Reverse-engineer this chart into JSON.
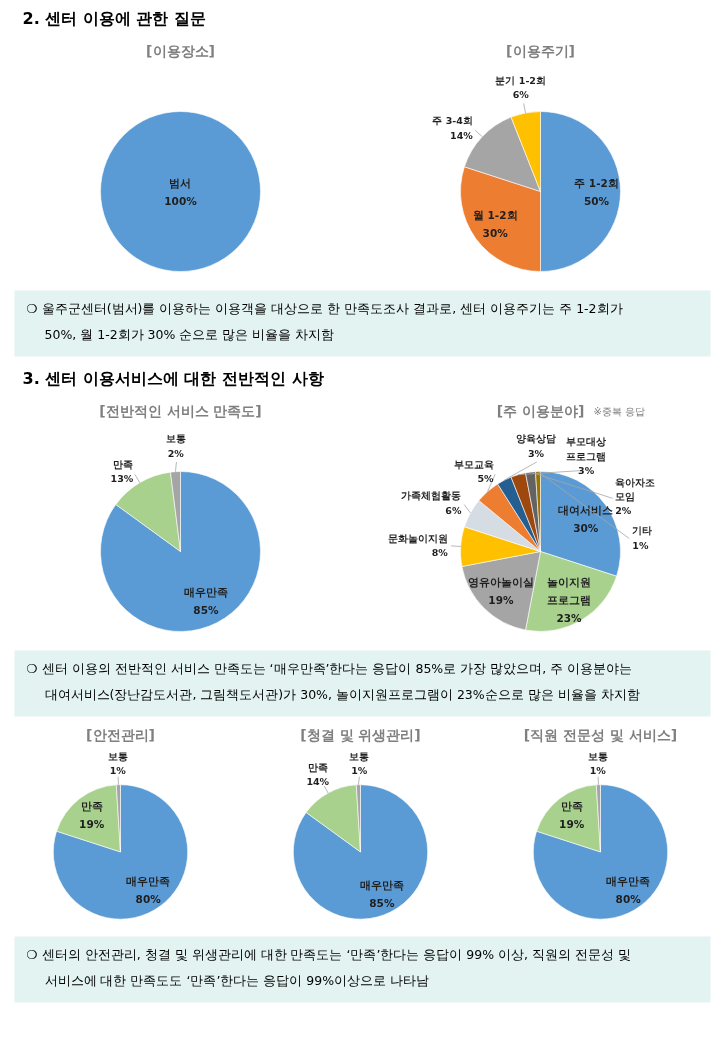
{
  "chart_data": [
    {
      "type": "other",
      "title": "2. 센터 이용에 관한 질문"
    },
    {
      "type": "pie",
      "title": "[이용장소]",
      "categories": [
        "범서"
      ],
      "values": [
        100
      ],
      "value_labels": [
        "100%"
      ],
      "colors": [
        "#5b9bd5"
      ]
    },
    {
      "type": "pie",
      "title": "[이용주기]",
      "categories": [
        "주 1-2회",
        "월 1-2회",
        "주 3-4회",
        "분기 1-2회"
      ],
      "values": [
        50,
        30,
        14,
        6
      ],
      "value_labels": [
        "50%",
        "30%",
        "14%",
        "6%"
      ],
      "colors": [
        "#5b9bd5",
        "#ed7d31",
        "#a5a5a5",
        "#ffc000"
      ]
    },
    {
      "type": "other",
      "annotations": [
        "❍ 울주군센터(범서)를 이용하는 이용객을 대상으로 한 만족도조사 결과로, 센터 이용주기는 주 1-2회가\n50%, 월 1-2회가 30% 순으로 많은 비율을 차지함"
      ]
    },
    {
      "type": "other",
      "title": "3. 센터 이용서비스에 대한 전반적인 사항"
    },
    {
      "type": "pie",
      "title": "[전반적인 서비스 만족도]",
      "categories": [
        "매우만족",
        "만족",
        "보통"
      ],
      "values": [
        85,
        13,
        2
      ],
      "value_labels": [
        "85%",
        "13%",
        "2%"
      ],
      "colors": [
        "#5b9bd5",
        "#a9d18e",
        "#a5a5a5"
      ]
    },
    {
      "type": "pie",
      "title": "[주 이용분야]",
      "subtitle": "※중복 응답",
      "categories": [
        "대여서비스",
        "놀이지원\n프로그램",
        "영유아놀이실",
        "문화놀이지원",
        "가족체험활동",
        "부모교육",
        "양육상담",
        "부모대상\n프로그램",
        "육아자조\n모임",
        "기타"
      ],
      "values": [
        30,
        23,
        19,
        8,
        6,
        5,
        3,
        3,
        2,
        1
      ],
      "value_labels": [
        "30%",
        "23%",
        "19%",
        "8%",
        "6%",
        "5%",
        "3%",
        "3%",
        "2%",
        "1%"
      ],
      "colors": [
        "#5b9bd5",
        "#a9d18e",
        "#a5a5a5",
        "#ffc000",
        "#d6dce4",
        "#ed7d31",
        "#255e91",
        "#9e480e",
        "#636363",
        "#997300"
      ]
    },
    {
      "type": "other",
      "annotations": [
        "❍ 센터 이용의 전반적인 서비스 만족도는 ‘매우만족’한다는 응답이 85%로 가장 많았으며, 주 이용분야는\n대여서비스(장난감도서관, 그림책도서관)가 30%, 놀이지원프로그램이 23%순으로 많은 비율을 차지함"
      ]
    },
    {
      "type": "pie",
      "title": "[안전관리]",
      "categories": [
        "매우만족",
        "만족",
        "보통"
      ],
      "values": [
        80,
        19,
        1
      ],
      "value_labels": [
        "80%",
        "19%",
        "1%"
      ],
      "colors": [
        "#5b9bd5",
        "#a9d18e",
        "#a5a5a5"
      ]
    },
    {
      "type": "pie",
      "title": "[청결 및 위생관리]",
      "categories": [
        "매우만족",
        "만족",
        "보통"
      ],
      "values": [
        85,
        14,
        1
      ],
      "value_labels": [
        "85%",
        "14%",
        "1%"
      ],
      "colors": [
        "#5b9bd5",
        "#a9d18e",
        "#a5a5a5"
      ]
    },
    {
      "type": "pie",
      "title": "[직원 전문성 및 서비스]",
      "categories": [
        "매우만족",
        "만족",
        "보통"
      ],
      "values": [
        80,
        19,
        1
      ],
      "value_labels": [
        "80%",
        "19%",
        "1%"
      ],
      "colors": [
        "#5b9bd5",
        "#a9d18e",
        "#a5a5a5"
      ]
    },
    {
      "type": "other",
      "annotations": [
        "❍ 센터의 안전관리, 청결 및 위생관리에 대한 만족도는 ‘만족’한다는 응답이 99% 이상, 직원의 전문성 및\n서비스에 대한 만족도도 ‘만족’한다는 응답이 99%이상으로 나타남"
      ]
    }
  ]
}
